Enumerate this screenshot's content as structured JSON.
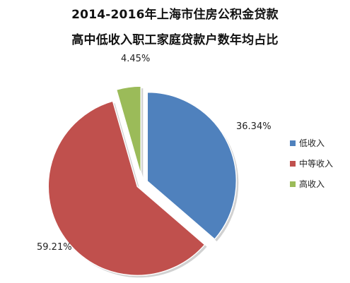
{
  "chart_data": {
    "type": "pie",
    "title": "2014-2016年上海市住房公积金贷款",
    "subtitle": "高中低收入职工家庭贷款户数年均占比",
    "categories": [
      "低收入",
      "中等收入",
      "高收入"
    ],
    "values": [
      36.34,
      59.21,
      4.45
    ],
    "data_labels": [
      "36.34%",
      "59.21%",
      "4.45%"
    ],
    "colors": [
      "#4F81BD",
      "#C0504D",
      "#9BBB59"
    ],
    "exploded": true,
    "legend_position": "right"
  }
}
